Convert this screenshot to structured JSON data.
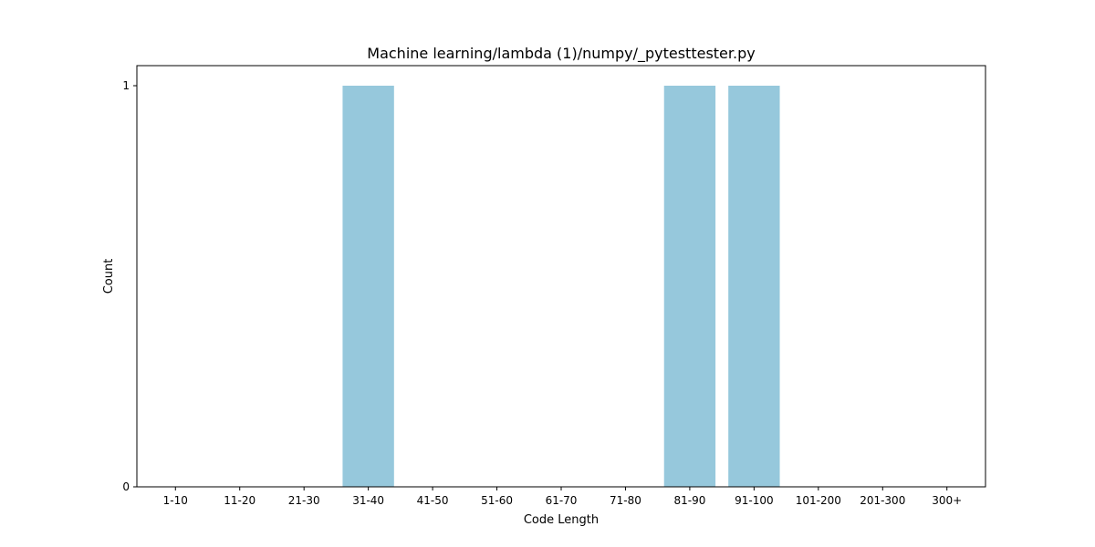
{
  "chart_data": {
    "type": "bar",
    "title": "Machine learning/lambda (1)/numpy/_pytesttester.py",
    "xlabel": "Code Length",
    "ylabel": "Count",
    "categories": [
      "1-10",
      "11-20",
      "21-30",
      "31-40",
      "41-50",
      "51-60",
      "61-70",
      "71-80",
      "81-90",
      "91-100",
      "101-200",
      "201-300",
      "300+"
    ],
    "values": [
      0,
      0,
      0,
      1,
      0,
      0,
      0,
      0,
      1,
      1,
      0,
      0,
      0
    ],
    "yticks": [
      "0",
      "1"
    ],
    "ylim": [
      0,
      1.05
    ],
    "bar_color": "#96c8dc",
    "grid": false,
    "legend": "none"
  }
}
